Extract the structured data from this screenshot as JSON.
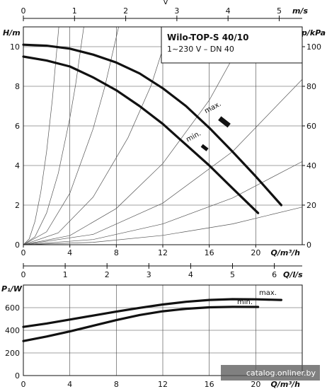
{
  "chart_data": [
    {
      "type": "line",
      "title": "Wilo-TOP-S 40/10",
      "subtitle": "1~230 V – DN 40",
      "x_axis": {
        "label": "Q/m³/h",
        "range": [
          0,
          24
        ],
        "ticks": [
          0,
          4,
          8,
          12,
          16,
          20
        ]
      },
      "top_axis": {
        "label": "m/s",
        "top_label": "v",
        "range": [
          0,
          5.45
        ],
        "ticks": [
          0,
          1,
          2,
          3,
          4,
          5
        ]
      },
      "y_axis_left": {
        "label": "H/m",
        "range": [
          0,
          11
        ],
        "ticks": [
          0,
          2,
          4,
          6,
          8,
          10
        ]
      },
      "y_axis_right": {
        "label": "p/kPa",
        "range": [
          0,
          110
        ],
        "ticks": [
          0,
          20,
          40,
          60,
          80,
          100
        ]
      },
      "grid": true,
      "series": [
        {
          "name": "max.",
          "x": [
            0,
            2,
            4,
            6,
            8,
            10,
            12,
            14,
            16,
            18,
            20,
            22.2
          ],
          "y": [
            10.1,
            10.05,
            9.9,
            9.6,
            9.2,
            8.65,
            7.9,
            7.0,
            5.9,
            4.7,
            3.45,
            2.0
          ]
        },
        {
          "name": "min.",
          "x": [
            0,
            2,
            4,
            6,
            8,
            10,
            12,
            14,
            16,
            18,
            20.2
          ],
          "y": [
            9.5,
            9.3,
            9.0,
            8.45,
            7.8,
            7.0,
            6.1,
            5.05,
            4.0,
            2.85,
            1.6
          ]
        }
      ],
      "system_curves": [
        {
          "x": [
            0,
            0.5,
            1,
            1.5,
            2,
            2.5,
            3.05
          ],
          "y": [
            0,
            0.29,
            1.18,
            2.65,
            4.7,
            7.35,
            11.0
          ]
        },
        {
          "x": [
            0,
            1,
            2,
            3,
            4,
            4.5,
            5.2
          ],
          "y": [
            0,
            0.4,
            1.6,
            3.6,
            6.4,
            8.1,
            11.0
          ]
        },
        {
          "x": [
            0,
            2,
            4,
            6,
            7,
            8.2
          ],
          "y": [
            0,
            0.65,
            2.6,
            5.85,
            7.95,
            11.0
          ]
        },
        {
          "x": [
            0,
            3,
            6,
            9,
            11,
            12.6
          ],
          "y": [
            0,
            0.6,
            2.4,
            5.4,
            8.05,
            11.0
          ]
        },
        {
          "x": [
            0,
            4,
            8,
            12,
            16,
            19.5
          ],
          "y": [
            0,
            0.46,
            1.83,
            4.1,
            7.3,
            11.0
          ]
        },
        {
          "x": [
            0,
            6,
            12,
            18,
            24
          ],
          "y": [
            0,
            0.52,
            2.1,
            4.7,
            8.35
          ]
        },
        {
          "x": [
            0,
            6,
            12,
            18,
            24
          ],
          "y": [
            0,
            0.26,
            1.05,
            2.36,
            4.2
          ]
        },
        {
          "x": [
            0,
            6,
            12,
            18,
            24
          ],
          "y": [
            0,
            0.12,
            0.47,
            1.05,
            1.9
          ]
        }
      ],
      "markers": [
        {
          "label": "max.",
          "x": 17.3,
          "y": 6.2
        },
        {
          "label": "min.",
          "x": 15.6,
          "y": 4.9
        }
      ]
    },
    {
      "type": "line",
      "x_axis": {
        "label": "Q/m³/h",
        "range": [
          0,
          24
        ],
        "ticks": [
          0,
          4,
          8,
          12,
          16,
          20
        ]
      },
      "top_axis": {
        "label": "Q/l/s",
        "range": [
          0,
          6.667
        ],
        "ticks": [
          0,
          1,
          2,
          3,
          4,
          5,
          6
        ]
      },
      "y_axis": {
        "label": "P₁/W",
        "range": [
          0,
          800
        ],
        "ticks": [
          0,
          200,
          400,
          600
        ]
      },
      "grid": true,
      "series": [
        {
          "name": "max.",
          "x": [
            0,
            2,
            4,
            6,
            8,
            10,
            12,
            14,
            16,
            18,
            20,
            22.2
          ],
          "y": [
            430,
            460,
            495,
            530,
            565,
            598,
            628,
            652,
            668,
            675,
            674,
            668
          ]
        },
        {
          "name": "min.",
          "x": [
            0,
            2,
            4,
            6,
            8,
            10,
            12,
            14,
            16,
            18,
            20.2
          ],
          "y": [
            305,
            345,
            390,
            440,
            490,
            535,
            568,
            590,
            603,
            607,
            606
          ]
        }
      ]
    }
  ],
  "watermark": "catalog.onliner.by"
}
